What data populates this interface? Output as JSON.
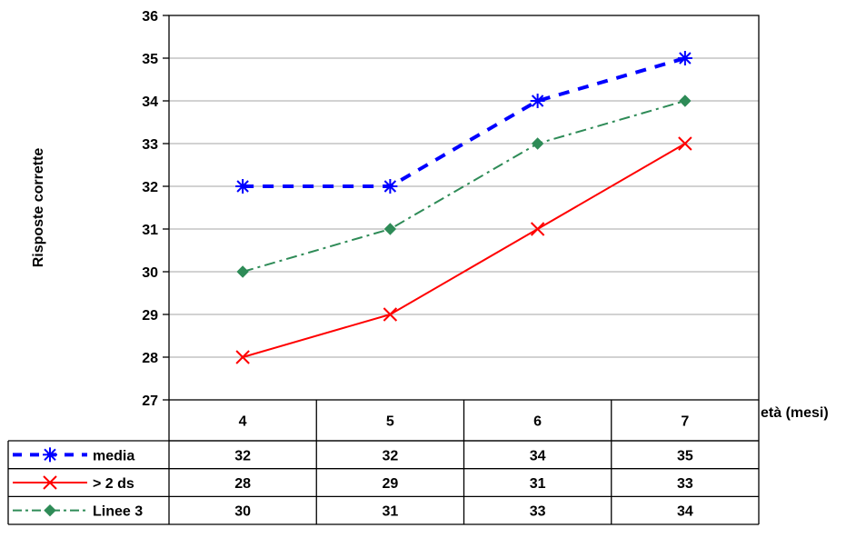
{
  "chart_data": {
    "type": "line",
    "title": "",
    "xlabel": "età (mesi)",
    "ylabel": "Risposte corrette",
    "categories": [
      "4",
      "5",
      "6",
      "7"
    ],
    "ylim": [
      27,
      36
    ],
    "yticks": [
      27,
      28,
      29,
      30,
      31,
      32,
      33,
      34,
      35,
      36
    ],
    "grid": true,
    "legend": "data-table",
    "series": [
      {
        "name": "media",
        "values": [
          32,
          32,
          34,
          35
        ],
        "display_values": [
          "32",
          "32",
          "34",
          "35"
        ],
        "color": "#0000ff",
        "line_style": "dashed",
        "marker": "asterisk"
      },
      {
        "name": "> 2 ds",
        "values": [
          28,
          29,
          31,
          33
        ],
        "display_values": [
          "28",
          "29",
          "31",
          "33"
        ],
        "color": "#ff0000",
        "line_style": "solid",
        "marker": "x"
      },
      {
        "name": "Linee 3",
        "values": [
          30,
          31,
          33,
          34
        ],
        "display_values": [
          "30",
          "31",
          "33",
          "34"
        ],
        "color": "#2e8b57",
        "line_style": "dash-dot",
        "marker": "diamond"
      }
    ]
  }
}
